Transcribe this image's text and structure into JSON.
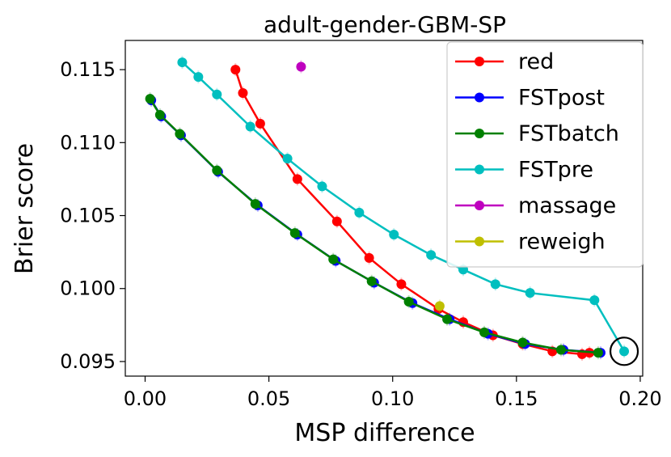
{
  "chart_data": {
    "type": "line",
    "title": "adult-gender-GBM-SP",
    "xlabel": "MSP difference",
    "ylabel": "Brier score",
    "xlim": [
      -0.008,
      0.201
    ],
    "ylim": [
      0.094,
      0.117
    ],
    "xticks": [
      0.0,
      0.05,
      0.1,
      0.15,
      0.2
    ],
    "xtick_labels": [
      "0.00",
      "0.05",
      "0.10",
      "0.15",
      "0.20"
    ],
    "yticks": [
      0.095,
      0.1,
      0.105,
      0.11,
      0.115
    ],
    "ytick_labels": [
      "0.095",
      "0.100",
      "0.105",
      "0.110",
      "0.115"
    ],
    "legend_position": "top-right",
    "series": [
      {
        "name": "red",
        "color": "#ff0000",
        "points": [
          [
            0.0365,
            0.115
          ],
          [
            0.0395,
            0.1134
          ],
          [
            0.0465,
            0.1113
          ],
          [
            0.0615,
            0.1075
          ],
          [
            0.0775,
            0.1046
          ],
          [
            0.0905,
            0.1021
          ],
          [
            0.1035,
            0.1003
          ],
          [
            0.1185,
            0.0986
          ],
          [
            0.1285,
            0.0977
          ],
          [
            0.1405,
            0.0968
          ],
          [
            0.1525,
            0.0962
          ],
          [
            0.1645,
            0.0957
          ],
          [
            0.1765,
            0.0955
          ],
          [
            0.1795,
            0.0956
          ]
        ]
      },
      {
        "name": "FSTpost",
        "color": "#0000ff",
        "points": [
          [
            0.0025,
            0.1129
          ],
          [
            0.0065,
            0.1118
          ],
          [
            0.0145,
            0.1105
          ],
          [
            0.0295,
            0.108
          ],
          [
            0.0455,
            0.1057
          ],
          [
            0.0615,
            0.1037
          ],
          [
            0.077,
            0.1019
          ],
          [
            0.0925,
            0.1004
          ],
          [
            0.108,
            0.099
          ],
          [
            0.123,
            0.0979
          ],
          [
            0.1385,
            0.0969
          ],
          [
            0.1535,
            0.0962
          ],
          [
            0.169,
            0.0958
          ],
          [
            0.184,
            0.0956
          ]
        ]
      },
      {
        "name": "FSTbatch",
        "color": "#008000",
        "points": [
          [
            0.002,
            0.113
          ],
          [
            0.006,
            0.1119
          ],
          [
            0.014,
            0.1106
          ],
          [
            0.029,
            0.1081
          ],
          [
            0.0445,
            0.1058
          ],
          [
            0.0605,
            0.1038
          ],
          [
            0.076,
            0.102
          ],
          [
            0.0915,
            0.1005
          ],
          [
            0.1065,
            0.0991
          ],
          [
            0.122,
            0.0979
          ],
          [
            0.137,
            0.097
          ],
          [
            0.1525,
            0.0963
          ],
          [
            0.168,
            0.0958
          ],
          [
            0.183,
            0.0956
          ]
        ]
      },
      {
        "name": "FSTpre",
        "color": "#00bfbf",
        "points": [
          [
            0.015,
            0.1155
          ],
          [
            0.0215,
            0.1145
          ],
          [
            0.029,
            0.1133
          ],
          [
            0.0425,
            0.1111
          ],
          [
            0.0575,
            0.1089
          ],
          [
            0.0715,
            0.107
          ],
          [
            0.0865,
            0.1052
          ],
          [
            0.1005,
            0.1037
          ],
          [
            0.1155,
            0.1023
          ],
          [
            0.1285,
            0.1013
          ],
          [
            0.1415,
            0.1003
          ],
          [
            0.1555,
            0.0997
          ],
          [
            0.1815,
            0.0992
          ],
          [
            0.1935,
            0.0957
          ]
        ]
      },
      {
        "name": "massage",
        "color": "#bf00bf",
        "points": [
          [
            0.063,
            0.1152
          ]
        ]
      },
      {
        "name": "reweigh",
        "color": "#bfbf00",
        "points": [
          [
            0.119,
            0.0988
          ]
        ]
      }
    ],
    "highlight_circle": {
      "x": 0.1935,
      "y": 0.0957
    }
  }
}
